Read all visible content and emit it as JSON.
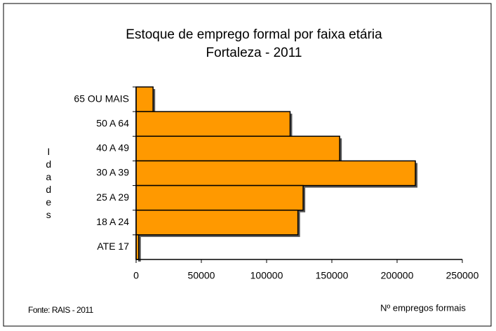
{
  "chart_data": {
    "type": "hbar",
    "title": "Estoque de emprego formal por faixa etária",
    "subtitle": "Fortaleza - 2011",
    "y_label": "Idades",
    "x_label": "Nº empregos formais",
    "source": "Fonte: RAIS - 2011",
    "categories": [
      "65 OU MAIS",
      "50 A 64",
      "40 A 49",
      "30 A 39",
      "25 A 29",
      "18 A 24",
      "ATE 17"
    ],
    "values": [
      13000,
      118000,
      156000,
      214000,
      128000,
      124000,
      2000
    ],
    "color": "#ff9900",
    "xlim": [
      0,
      250000
    ],
    "xticks": [
      0,
      50000,
      100000,
      150000,
      200000,
      250000
    ],
    "grid": false
  }
}
